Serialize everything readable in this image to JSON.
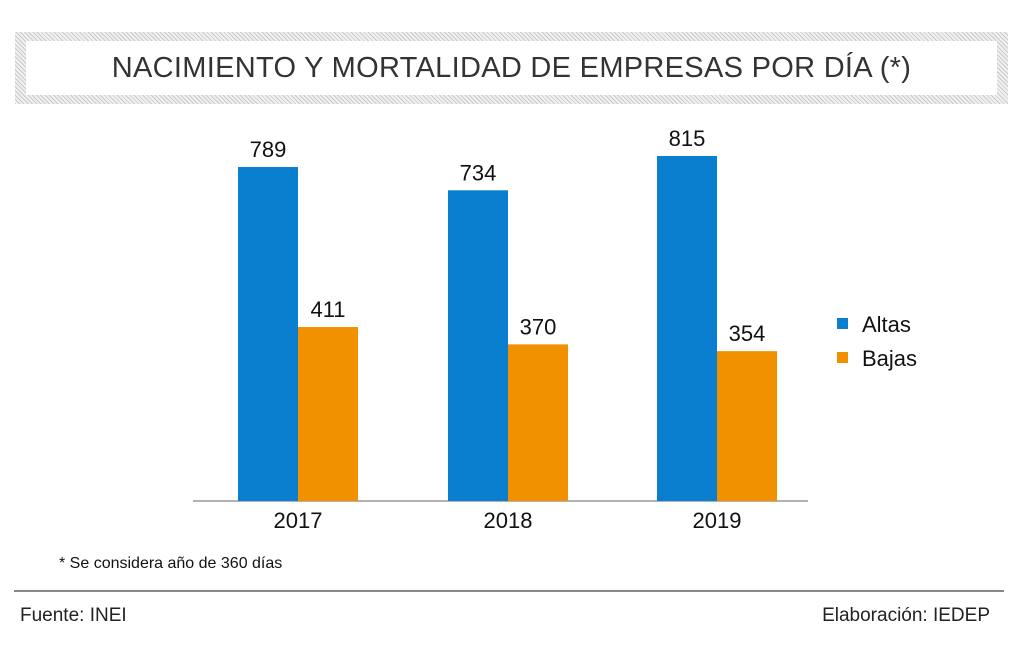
{
  "chart_data": {
    "type": "bar",
    "title": "NACIMIENTO Y MORTALIDAD DE EMPRESAS POR DÍA (*)",
    "categories": [
      "2017",
      "2018",
      "2019"
    ],
    "series": [
      {
        "name": "Altas",
        "values": [
          789,
          734,
          815
        ],
        "color": "#0a7fd0"
      },
      {
        "name": "Bajas",
        "values": [
          411,
          370,
          354
        ],
        "color": "#f29100"
      }
    ],
    "xlabel": "",
    "ylabel": "",
    "ylim": [
      0,
      815
    ],
    "grid": false,
    "legend": "right"
  },
  "footnote": "* Se considera año de 360 días",
  "source": "Fuente: INEI",
  "credit": "Elaboración: IEDEP"
}
